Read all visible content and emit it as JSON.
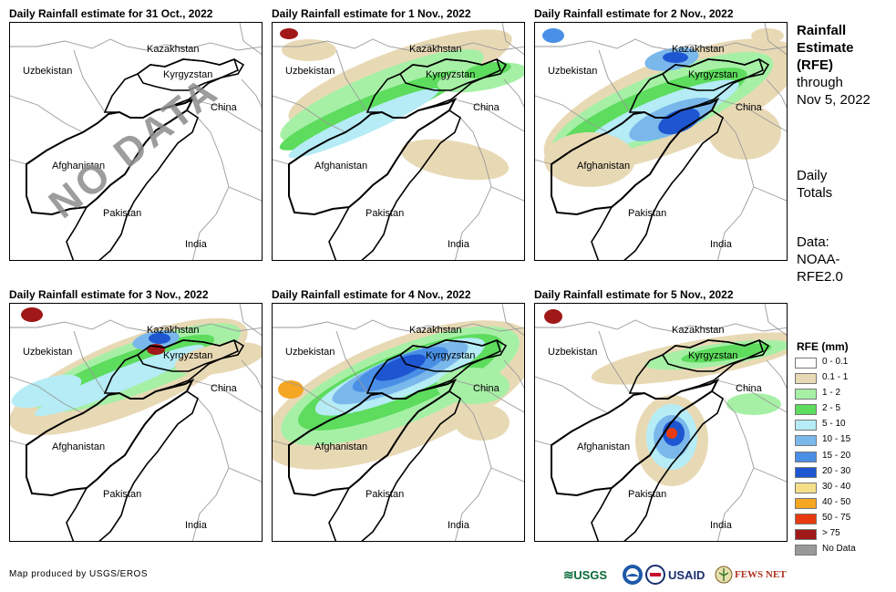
{
  "panels": [
    {
      "title": "Daily Rainfall estimate for 31 Oct., 2022",
      "overlay": "NO DATA"
    },
    {
      "title": "Daily Rainfall estimate for 1 Nov., 2022"
    },
    {
      "title": "Daily Rainfall estimate for 2 Nov., 2022"
    },
    {
      "title": "Daily Rainfall estimate for 3 Nov., 2022"
    },
    {
      "title": "Daily Rainfall estimate for 4 Nov., 2022"
    },
    {
      "title": "Daily Rainfall estimate for 5 Nov., 2022"
    }
  ],
  "labels": {
    "kazakhstan": "Kazakhstan",
    "uzbekistan": "Uzbekistan",
    "kyrgyzstan": "Kyrgyzstan",
    "china": "China",
    "afghanistan": "Afghanistan",
    "pakistan": "Pakistan",
    "india": "India"
  },
  "side": {
    "title_line1": "Rainfall",
    "title_line2": "Estimate",
    "title_line3": "(RFE)",
    "through": "through",
    "date": "Nov 5, 2022",
    "daily1": "Daily",
    "daily2": "Totals",
    "data1": "Data:",
    "data2": "NOAA-",
    "data3": "RFE2.0"
  },
  "legend": {
    "title": "RFE (mm)",
    "items": [
      {
        "label": "0 - 0.1",
        "color": "#ffffff"
      },
      {
        "label": "0.1 - 1",
        "color": "#e8d9b5"
      },
      {
        "label": "1 - 2",
        "color": "#a6f0a6"
      },
      {
        "label": "2 - 5",
        "color": "#5ddc5d"
      },
      {
        "label": "5 - 10",
        "color": "#b5ecf5"
      },
      {
        "label": "10 - 15",
        "color": "#7ab8ec"
      },
      {
        "label": "15 - 20",
        "color": "#4a8fe6"
      },
      {
        "label": "20 - 30",
        "color": "#1e55d0"
      },
      {
        "label": "30 - 40",
        "color": "#f5e08a"
      },
      {
        "label": "40 - 50",
        "color": "#f5a623"
      },
      {
        "label": "50 - 75",
        "color": "#e83a10"
      },
      {
        "label": "> 75",
        "color": "#a01818"
      },
      {
        "label": "No Data",
        "color": "#999999"
      }
    ]
  },
  "credit": "Map produced by USGS/EROS",
  "logos": {
    "usgs": "USGS",
    "usaid": "USAID",
    "fewsnet": "FEWS NET"
  }
}
